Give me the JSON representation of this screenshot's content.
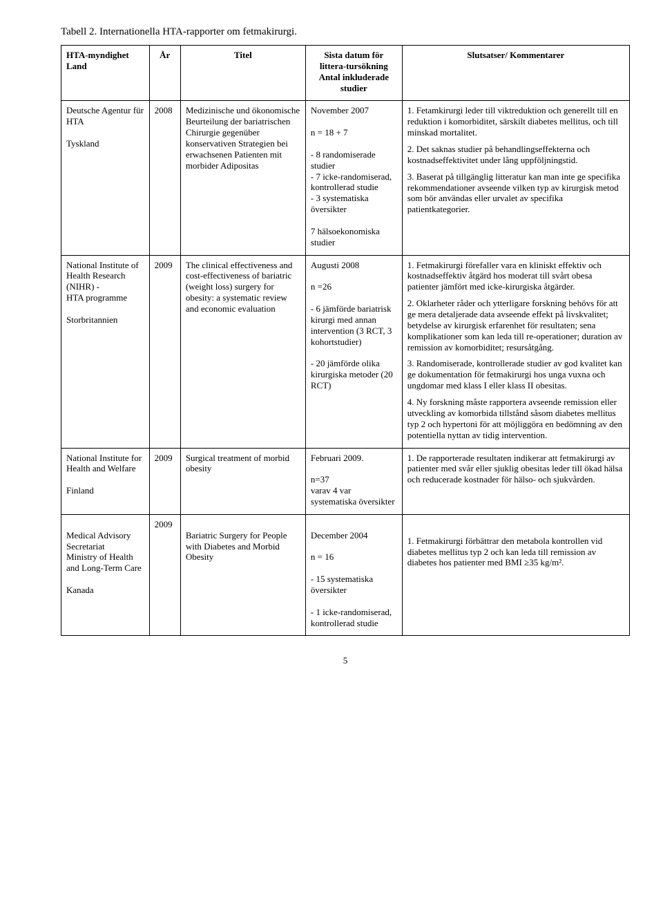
{
  "title": "Tabell 2. Internationella HTA-rapporter om fetmakirurgi.",
  "header": {
    "agency": "HTA-myndighet\nLand",
    "year": "År",
    "titleCol": "Titel",
    "date": "Sista datum för littera-tursökning\nAntal inkluderade studier",
    "comments": "Slutsatser/ Kommentarer"
  },
  "rows": [
    {
      "agency": "Deutsche Agentur für HTA\n\nTyskland",
      "year": "2008",
      "title": "Medizinische und ökonomische Beurteilung der bariatrischen Chirurgie gegenüber konservativen Strategien bei erwachsenen Patienten mit morbider Adipositas",
      "date": "November 2007\n\nn = 18 + 7\n\n- 8 randomiserade studier\n- 7 icke-randomiserad, kontrollerad studie\n- 3 systematiska översikter\n\n7 hälsoekonomiska studier",
      "comments": [
        "1. Fetamkirurgi leder till viktreduktion och generellt till en reduktion i komorbiditet, särskilt diabetes mellitus, och till minskad mortalitet.",
        "2. Det saknas studier på behandlingseffekterna och kostnadseffektivitet under lång uppföljningstid.",
        "3. Baserat på tillgänglig litteratur kan man inte ge specifika rekommendationer avseende vilken typ av kirurgisk metod som bör användas eller urvalet av specifika patientkategorier."
      ]
    },
    {
      "agency": "National Institute of Health Research (NIHR) -\nHTA programme\n\nStorbritannien",
      "year": "2009",
      "title": "The clinical effectiveness and\ncost-effectiveness of bariatric (weight loss) surgery for obesity: a systematic review\nand economic evaluation",
      "date": "Augusti 2008\n\nn =26\n\n - 6 jämförde bariatrisk kirurgi med annan intervention (3 RCT, 3 kohortstudier)\n\n- 20 jämförde olika kirurgiska metoder (20 RCT)",
      "comments": [
        "1. Fetmakirurgi förefaller vara en kliniskt effektiv och kostnadseffektiv åtgärd hos moderat till svårt obesa patienter jämfört med icke-kirurgiska åtgärder.",
        "2. Oklarheter råder och ytterligare forskning behövs för att ge mera detaljerade data avseende effekt på livskvalitet; betydelse av kirurgisk erfarenhet för resultaten; sena komplikationer som kan leda till re-operationer; duration av remission av komorbiditet; resursåtgång.",
        "3. Randomiserade, kontrollerade studier av god kvalitet kan ge dokumentation för fetmakirurgi hos unga vuxna och ungdomar med klass I eller klass II obesitas.",
        "4. Ny forskning måste rapportera avseende remission eller utveckling av komorbida tillstånd såsom diabetes mellitus typ 2 och hypertoni för att möjliggöra en bedömning av den potentiella nyttan av tidig intervention."
      ]
    },
    {
      "agency": "National Institute for Health and Welfare\n\nFinland",
      "year": "2009",
      "title": "Surgical treatment of morbid obesity",
      "date": "Februari 2009.\n\nn=37\nvarav 4 var systematiska översikter",
      "comments": [
        "1. De rapporterade resultaten indikerar att fetmakirurgi av patienter med svår eller sjuklig obesitas leder till ökad hälsa och reducerade kostnader för hälso- och sjukvården."
      ]
    },
    {
      "agency": "\nMedical Advisory Secretariat\nMinistry of Health and Long-Term Care\n\nKanada",
      "year": "2009",
      "title": "\nBariatric Surgery for People with Diabetes and Morbid Obesity",
      "date": "\nDecember 2004\n\nn = 16\n\n- 15 systematiska översikter\n\n- 1 icke-randomiserad, kontrollerad studie",
      "comments": [
        "",
        "1. Fetmakirurgi förbättrar den metabola kontrollen vid diabetes mellitus typ 2 och kan leda till remission av diabetes hos patienter med BMI ≥35 kg/m²."
      ]
    }
  ],
  "pageNumber": "5"
}
